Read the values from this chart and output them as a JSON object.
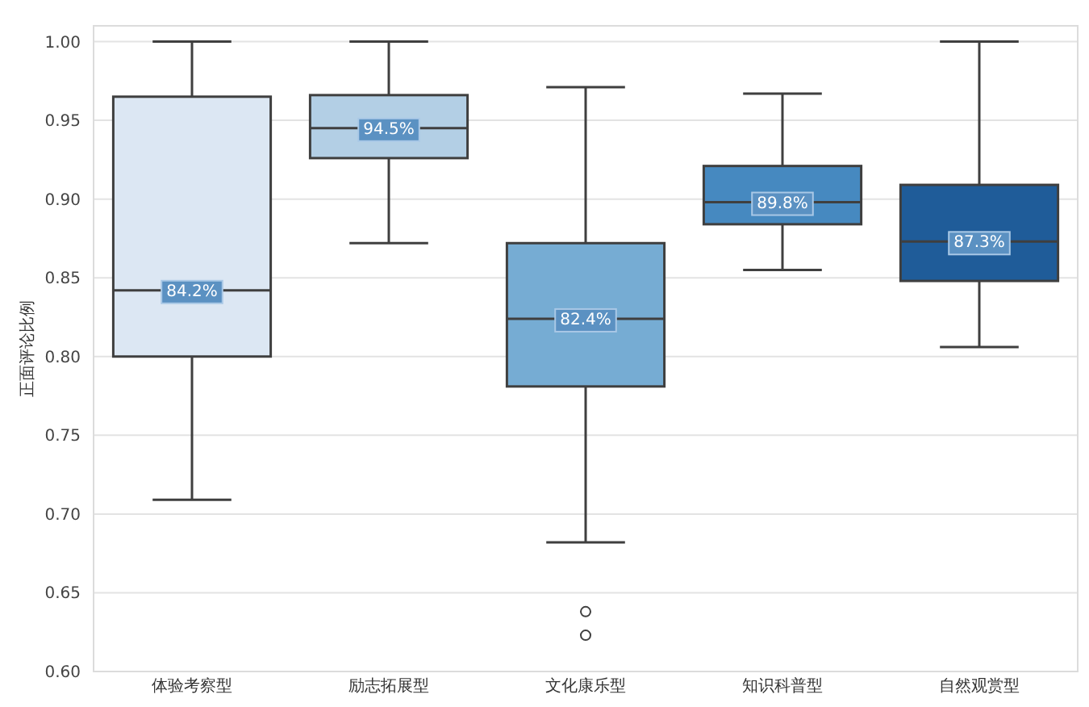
{
  "chart_data": {
    "type": "box",
    "ylabel": "正面评论比例",
    "categories": [
      "体验考察型",
      "励志拓展型",
      "文化康乐型",
      "知识科普型",
      "自然观赏型"
    ],
    "colors": [
      "#dce7f3",
      "#b3cfe5",
      "#76acd3",
      "#4689c0",
      "#1f5c99"
    ],
    "boxes": [
      {
        "low": 0.709,
        "q1": 0.8,
        "median": 0.842,
        "q3": 0.965,
        "high": 1.0
      },
      {
        "low": 0.872,
        "q1": 0.926,
        "median": 0.945,
        "q3": 0.966,
        "high": 1.0
      },
      {
        "low": 0.682,
        "q1": 0.781,
        "median": 0.824,
        "q3": 0.872,
        "high": 0.971,
        "outliers": [
          0.638,
          0.623
        ]
      },
      {
        "low": 0.855,
        "q1": 0.884,
        "median": 0.898,
        "q3": 0.921,
        "high": 0.967
      },
      {
        "low": 0.806,
        "q1": 0.848,
        "median": 0.873,
        "q3": 0.909,
        "high": 1.0
      }
    ],
    "value_labels": [
      "84.2%",
      "94.5%",
      "82.4%",
      "89.8%",
      "87.3%"
    ],
    "ylim": [
      0.6,
      1.01
    ],
    "yticks": [
      {
        "value": 0.6,
        "label": "0.60"
      },
      {
        "value": 0.65,
        "label": "0.65"
      },
      {
        "value": 0.7,
        "label": "0.70"
      },
      {
        "value": 0.75,
        "label": "0.75"
      },
      {
        "value": 0.8,
        "label": "0.80"
      },
      {
        "value": 0.85,
        "label": "0.85"
      },
      {
        "value": 0.9,
        "label": "0.90"
      },
      {
        "value": 0.95,
        "label": "0.95"
      },
      {
        "value": 1.0,
        "label": "1.00"
      }
    ],
    "grid": "y"
  }
}
